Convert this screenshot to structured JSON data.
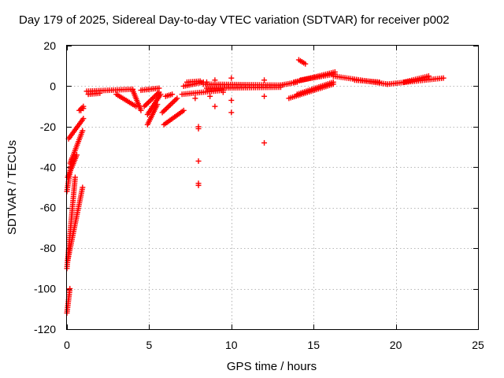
{
  "chart_data": {
    "type": "scatter",
    "title": "Day 179 of 2025, Sidereal Day-to-day VTEC variation (SDTVAR) for receiver p002",
    "xlabel": "GPS time / hours",
    "ylabel": "SDTVAR / TECUs",
    "xlim": [
      0,
      25
    ],
    "ylim": [
      -120,
      20
    ],
    "xticks": [
      "0",
      "5",
      "10",
      "15",
      "20",
      "25"
    ],
    "yticks": [
      "20",
      "0",
      "-20",
      "-40",
      "-60",
      "-80",
      "-100",
      "-120"
    ],
    "grid": true,
    "marker": "plus",
    "color": "#ff0000",
    "series": [
      {
        "name": "SDTVAR",
        "segments": [
          {
            "x0": 0.0,
            "y0": -112,
            "x1": 0.18,
            "y1": -100
          },
          {
            "x0": 0.0,
            "y0": -90,
            "x1": 0.5,
            "y1": -45
          },
          {
            "x0": 0.05,
            "y0": -86,
            "x1": 0.95,
            "y1": -50
          },
          {
            "x0": 0.0,
            "y0": -52,
            "x1": 0.3,
            "y1": -36
          },
          {
            "x0": 0.05,
            "y0": -45,
            "x1": 0.6,
            "y1": -34
          },
          {
            "x0": 0.2,
            "y0": -38,
            "x1": 0.95,
            "y1": -22
          },
          {
            "x0": 0.1,
            "y0": -26,
            "x1": 1.0,
            "y1": -16
          },
          {
            "x0": 0.75,
            "y0": -12,
            "x1": 1.0,
            "y1": -10
          },
          {
            "x0": 1.2,
            "y0": -2.5,
            "x1": 4.0,
            "y1": -1.5
          },
          {
            "x0": 1.3,
            "y0": -4,
            "x1": 2.0,
            "y1": -3.5
          },
          {
            "x0": 3.0,
            "y0": -4,
            "x1": 4.2,
            "y1": -10
          },
          {
            "x0": 4.0,
            "y0": -2,
            "x1": 4.5,
            "y1": -12
          },
          {
            "x0": 4.5,
            "y0": -2,
            "x1": 5.6,
            "y1": -1
          },
          {
            "x0": 4.7,
            "y0": -10,
            "x1": 5.6,
            "y1": -3
          },
          {
            "x0": 4.9,
            "y0": -14,
            "x1": 5.7,
            "y1": -4
          },
          {
            "x0": 4.9,
            "y0": -19,
            "x1": 5.5,
            "y1": -9
          },
          {
            "x0": 5.8,
            "y0": -13,
            "x1": 6.7,
            "y1": -6
          },
          {
            "x0": 5.9,
            "y0": -19,
            "x1": 7.1,
            "y1": -12
          },
          {
            "x0": 6.0,
            "y0": -5,
            "x1": 6.4,
            "y1": -4
          },
          {
            "x0": 7.0,
            "y0": -4,
            "x1": 9.5,
            "y1": -2
          },
          {
            "x0": 7.1,
            "y0": 0,
            "x1": 8.3,
            "y1": 2
          },
          {
            "x0": 7.3,
            "y0": 2,
            "x1": 8.1,
            "y1": 2.5
          },
          {
            "x0": 8.3,
            "y0": 1,
            "x1": 13.0,
            "y1": 0.5
          },
          {
            "x0": 8.5,
            "y0": -1,
            "x1": 13.0,
            "y1": -0.5
          },
          {
            "x0": 13.0,
            "y0": 0.5,
            "x1": 14.0,
            "y1": 2
          },
          {
            "x0": 13.8,
            "y0": 2,
            "x1": 16.3,
            "y1": 7
          },
          {
            "x0": 14.2,
            "y0": 3,
            "x1": 16.3,
            "y1": 6
          },
          {
            "x0": 13.5,
            "y0": -6,
            "x1": 16.2,
            "y1": 1
          },
          {
            "x0": 14.0,
            "y0": -4,
            "x1": 16.2,
            "y1": 2
          },
          {
            "x0": 14.1,
            "y0": 13,
            "x1": 14.5,
            "y1": 11
          },
          {
            "x0": 16.2,
            "y0": 5,
            "x1": 19.5,
            "y1": 1
          },
          {
            "x0": 17.5,
            "y0": 3,
            "x1": 19.0,
            "y1": 2
          },
          {
            "x0": 19.5,
            "y0": 1,
            "x1": 22.9,
            "y1": 4
          },
          {
            "x0": 20.5,
            "y0": 2,
            "x1": 22.0,
            "y1": 5
          }
        ],
        "points": [
          [
            1.0,
            -11
          ],
          [
            0.85,
            -12
          ],
          [
            8.0,
            -20
          ],
          [
            8.0,
            -21
          ],
          [
            8.0,
            -37
          ],
          [
            8.0,
            -48
          ],
          [
            8.0,
            -49
          ],
          [
            7.8,
            -6
          ],
          [
            8.7,
            -5
          ],
          [
            9.0,
            -10
          ],
          [
            9.5,
            -3
          ],
          [
            10.0,
            -7
          ],
          [
            10.0,
            -13
          ],
          [
            10.0,
            4
          ],
          [
            12.0,
            3
          ],
          [
            12.0,
            -5
          ],
          [
            12.0,
            -28
          ],
          [
            9.0,
            3
          ],
          [
            8.5,
            2
          ]
        ]
      }
    ]
  }
}
